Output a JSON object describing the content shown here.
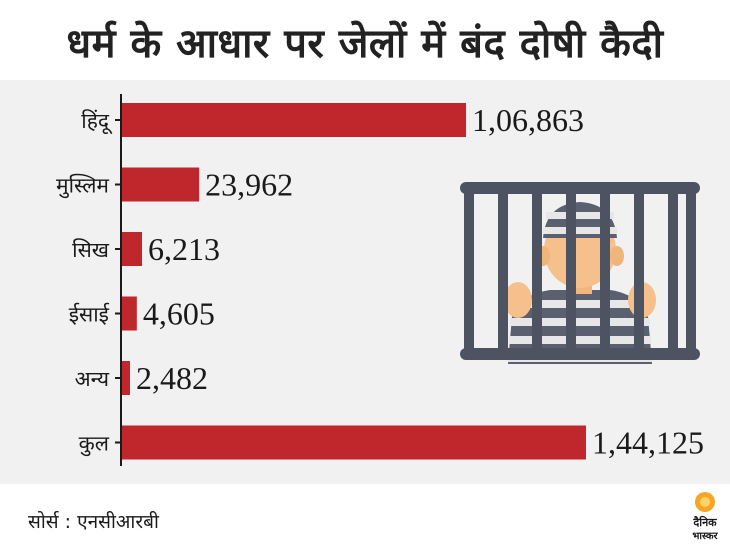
{
  "header": {
    "title": "धर्म के आधार पर जेलों में बंद दोषी कैदी"
  },
  "footer": {
    "source": "सोर्स : एनसीआरबी"
  },
  "brand": {
    "line1": "दैनिक",
    "line2": "भास्कर"
  },
  "colors": {
    "bar": "#c0272d",
    "panel": "#f1f1f1",
    "axis": "#1a1a1a",
    "logo": "#f5a623"
  },
  "chart_data": {
    "type": "bar",
    "orientation": "horizontal",
    "title": "धर्म के आधार पर जेलों में बंद दोषी कैदी",
    "categories": [
      "हिंदू",
      "मुस्लिम",
      "सिख",
      "ईसाई",
      "अन्य",
      "कुल"
    ],
    "values": [
      106863,
      23962,
      6213,
      4605,
      2482,
      144125
    ],
    "value_labels": [
      "1,06,863",
      "23,962",
      "6,213",
      "4,605",
      "2,482",
      "1,44,125"
    ],
    "xlim": [
      0,
      144125
    ],
    "grid": false,
    "legend": "none"
  }
}
